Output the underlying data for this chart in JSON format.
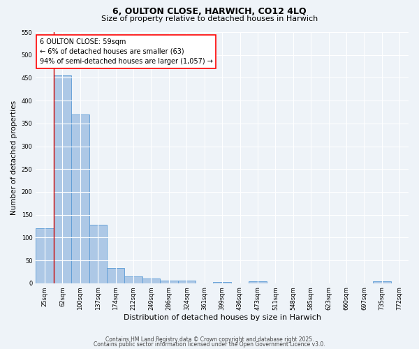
{
  "title": "6, OULTON CLOSE, HARWICH, CO12 4LQ",
  "subtitle": "Size of property relative to detached houses in Harwich",
  "xlabel": "Distribution of detached houses by size in Harwich",
  "ylabel": "Number of detached properties",
  "categories": [
    "25sqm",
    "62sqm",
    "100sqm",
    "137sqm",
    "174sqm",
    "212sqm",
    "249sqm",
    "286sqm",
    "324sqm",
    "361sqm",
    "399sqm",
    "436sqm",
    "473sqm",
    "511sqm",
    "548sqm",
    "585sqm",
    "623sqm",
    "660sqm",
    "697sqm",
    "735sqm",
    "772sqm"
  ],
  "values": [
    120,
    455,
    370,
    128,
    33,
    15,
    10,
    5,
    6,
    0,
    3,
    0,
    4,
    0,
    0,
    0,
    0,
    0,
    0,
    4,
    0
  ],
  "bar_color": "#adc8e6",
  "bar_edge_color": "#5b9bd5",
  "red_line_index": 1,
  "red_line_color": "#cc0000",
  "annotation_text": "6 OULTON CLOSE: 59sqm\n← 6% of detached houses are smaller (63)\n94% of semi-detached houses are larger (1,057) →",
  "ylim": [
    0,
    550
  ],
  "yticks": [
    0,
    50,
    100,
    150,
    200,
    250,
    300,
    350,
    400,
    450,
    500,
    550
  ],
  "bg_color": "#eef3f8",
  "plot_bg_color": "#eef3f8",
  "grid_color": "#ffffff",
  "footer_line1": "Contains HM Land Registry data © Crown copyright and database right 2025.",
  "footer_line2": "Contains public sector information licensed under the Open Government Licence v3.0.",
  "title_fontsize": 9,
  "subtitle_fontsize": 8,
  "tick_fontsize": 6,
  "label_fontsize": 8,
  "annotation_fontsize": 7,
  "ylabel_fontsize": 7.5
}
